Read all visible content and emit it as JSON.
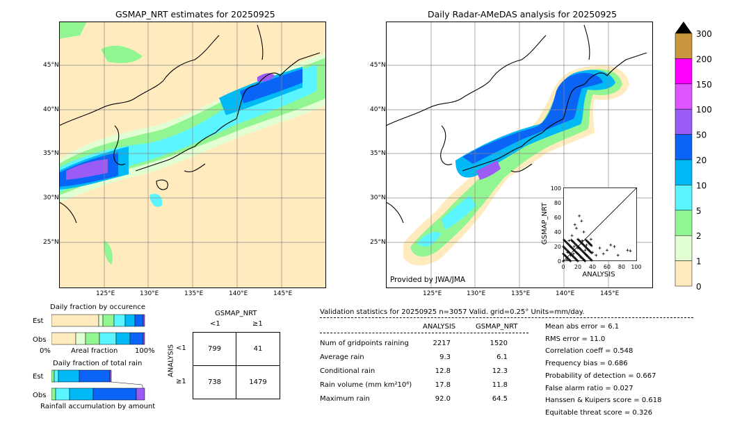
{
  "left_map": {
    "title": "GSMAP_NRT estimates for 20250925",
    "lat_labels": [
      "45°N",
      "40°N",
      "35°N",
      "30°N",
      "25°N"
    ],
    "lon_labels": [
      "125°E",
      "130°E",
      "135°E",
      "140°E",
      "145°E"
    ]
  },
  "right_map": {
    "title": "Daily Radar-AMeDAS analysis for 20250925",
    "lat_labels": [
      "45°N",
      "40°N",
      "35°N",
      "30°N",
      "25°N"
    ],
    "lon_labels": [
      "125°E",
      "130°E",
      "135°E",
      "140°E",
      "145°E"
    ],
    "credit": "Provided by JWA/JMA"
  },
  "colorbar": {
    "ticks": [
      "300",
      "200",
      "150",
      "100",
      "50",
      "20",
      "10",
      "5",
      "2",
      "1",
      "0"
    ],
    "colors": [
      "#c8963c",
      "#ff00ff",
      "#dd55ff",
      "#9b5cf5",
      "#0a64f5",
      "#00b9f5",
      "#5af5ff",
      "#91f591",
      "#e1ffd2",
      "#ffebbe"
    ]
  },
  "scatter": {
    "xlabel": "ANALYSIS",
    "ylabel": "GSMAP_NRT",
    "ticks": [
      "0",
      "20",
      "40",
      "60",
      "80",
      "100"
    ]
  },
  "occurrence": {
    "title": "Daily fraction by occurence",
    "rows": [
      "Est",
      "Obs"
    ],
    "axis_left": "0%",
    "axis_mid": "Areal fraction",
    "axis_right": "100%"
  },
  "total_rain": {
    "title": "Daily fraction of total rain",
    "rows": [
      "Est",
      "Obs"
    ],
    "axis_label": "Rainfall accumulation by amount"
  },
  "contingency": {
    "col_header": "GSMAP_NRT",
    "row_header": "ANALYSIS",
    "col_labels": [
      "<1",
      "≥1"
    ],
    "row_labels": [
      "<1",
      "≥1"
    ],
    "cells": [
      [
        "799",
        "41"
      ],
      [
        "738",
        "1479"
      ]
    ]
  },
  "validation": {
    "header": "Validation statistics for 20250925  n=3057 Valid. grid=0.25° Units=mm/day.",
    "col_analysis": "ANALYSIS",
    "col_gsmap": "GSMAP_NRT",
    "rows": [
      {
        "label": "Num of gridpoints raining",
        "analysis": "2217",
        "gsmap": "1520"
      },
      {
        "label": "Average rain",
        "analysis": "9.3",
        "gsmap": "6.1"
      },
      {
        "label": "Conditional rain",
        "analysis": "12.8",
        "gsmap": "12.3"
      },
      {
        "label": "Rain volume (mm km²10⁶)",
        "analysis": "17.8",
        "gsmap": "11.8"
      },
      {
        "label": "Maximum rain",
        "analysis": "92.0",
        "gsmap": "64.5"
      }
    ],
    "scores": [
      "Mean abs error =    6.1",
      "RMS error =   11.0",
      "Correlation coeff =  0.548",
      "Frequency bias =  0.686",
      "Probability of detection =  0.667",
      "False alarm ratio =  0.027",
      "Hanssen & Kuipers score =  0.618",
      "Equitable threat score =  0.326"
    ]
  },
  "chart_data": [
    {
      "type": "heatmap",
      "title": "GSMAP_NRT estimates for 20250925",
      "x_ticks": [
        "125°E",
        "130°E",
        "135°E",
        "140°E",
        "145°E"
      ],
      "y_ticks": [
        "45°N",
        "40°N",
        "35°N",
        "30°N",
        "25°N"
      ],
      "color_levels": [
        0,
        1,
        2,
        5,
        10,
        20,
        50,
        100,
        150,
        200,
        300
      ]
    },
    {
      "type": "heatmap",
      "title": "Daily Radar-AMeDAS analysis for 20250925",
      "x_ticks": [
        "125°E",
        "130°E",
        "135°E",
        "140°E",
        "145°E"
      ],
      "y_ticks": [
        "45°N",
        "40°N",
        "35°N",
        "30°N",
        "25°N"
      ],
      "color_levels": [
        0,
        1,
        2,
        5,
        10,
        20,
        50,
        100,
        150,
        200,
        300
      ]
    },
    {
      "type": "scatter",
      "xlabel": "ANALYSIS",
      "ylabel": "GSMAP_NRT",
      "xlim": [
        0,
        100
      ],
      "ylim": [
        0,
        100
      ],
      "note_points": [
        [
          5,
          2
        ],
        [
          10,
          8
        ],
        [
          15,
          20
        ],
        [
          20,
          30
        ],
        [
          18,
          45
        ],
        [
          22,
          62
        ],
        [
          25,
          55
        ],
        [
          12,
          35
        ],
        [
          30,
          15
        ],
        [
          35,
          25
        ],
        [
          40,
          12
        ],
        [
          45,
          8
        ],
        [
          50,
          18
        ],
        [
          60,
          15
        ],
        [
          70,
          20
        ],
        [
          88,
          15
        ],
        [
          92,
          14
        ],
        [
          8,
          28
        ],
        [
          16,
          50
        ],
        [
          28,
          40
        ],
        [
          14,
          10
        ],
        [
          24,
          5
        ],
        [
          32,
          22
        ],
        [
          38,
          30
        ],
        [
          55,
          10
        ],
        [
          65,
          22
        ],
        [
          75,
          8
        ],
        [
          20,
          18
        ],
        [
          6,
          12
        ],
        [
          26,
          28
        ]
      ]
    },
    {
      "type": "table",
      "title": "Validation statistics for 20250925",
      "columns": [
        "ANALYSIS",
        "GSMAP_NRT"
      ],
      "rows": [
        [
          "Num of gridpoints raining",
          2217,
          1520
        ],
        [
          "Average rain",
          9.3,
          6.1
        ],
        [
          "Conditional rain",
          12.8,
          12.3
        ],
        [
          "Rain volume (mm km²10⁶)",
          17.8,
          11.8
        ],
        [
          "Maximum rain",
          92.0,
          64.5
        ]
      ]
    }
  ]
}
